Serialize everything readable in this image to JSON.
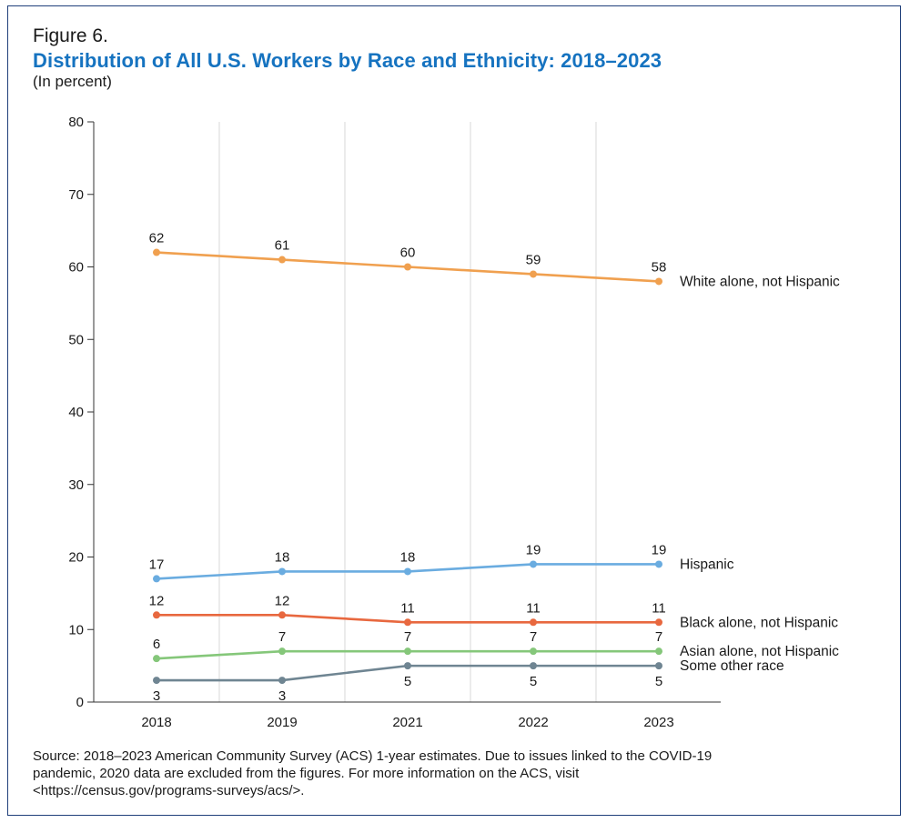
{
  "header": {
    "figure_label": "Figure 6.",
    "title": "Distribution of All U.S. Workers by Race and Ethnicity: 2018–2023",
    "subtitle": "(In percent)"
  },
  "source": {
    "lines": [
      "Source: 2018–2023 American Community Survey (ACS) 1-year estimates. Due to issues linked to the COVID-19",
      "pandemic, 2020 data are excluded from the figures. For more information on the ACS, visit",
      "<https://census.gov/programs-surveys/acs/>."
    ]
  },
  "chart_data": {
    "type": "line",
    "title": "Distribution of All U.S. Workers by Race and Ethnicity: 2018–2023",
    "xlabel": "",
    "ylabel": "In percent",
    "categories": [
      "2018",
      "2019",
      "2021",
      "2022",
      "2023"
    ],
    "ylim": [
      0,
      80
    ],
    "yticks": [
      0,
      10,
      20,
      30,
      40,
      50,
      60,
      70,
      80
    ],
    "grid": "vertical",
    "series": [
      {
        "name": "White alone, not Hispanic",
        "color": "#f0a04f",
        "values": [
          62,
          61,
          60,
          59,
          58
        ],
        "labels": [
          "62",
          "61",
          "60",
          "59",
          "58"
        ],
        "label_pos": [
          "above",
          "above",
          "above",
          "above",
          "above"
        ]
      },
      {
        "name": "Hispanic",
        "color": "#6aace0",
        "values": [
          17,
          18,
          18,
          19,
          19
        ],
        "labels": [
          "17",
          "18",
          "18",
          "19",
          "19"
        ],
        "label_pos": [
          "above",
          "above",
          "above",
          "above",
          "above"
        ]
      },
      {
        "name": "Black alone, not Hispanic",
        "color": "#e8683f",
        "values": [
          12,
          12,
          11,
          11,
          11
        ],
        "labels": [
          "12",
          "12",
          "11",
          "11",
          "11"
        ],
        "label_pos": [
          "above",
          "above",
          "above",
          "above",
          "above"
        ]
      },
      {
        "name": "Asian alone, not Hispanic",
        "color": "#85c77a",
        "values": [
          6,
          7,
          7,
          7,
          7
        ],
        "labels": [
          "6",
          "7",
          "7",
          "7",
          "7"
        ],
        "label_pos": [
          "above",
          "above",
          "above",
          "above",
          "above"
        ]
      },
      {
        "name": "Some other race",
        "color": "#6f8592",
        "values": [
          3,
          3,
          5,
          5,
          5
        ],
        "labels": [
          "3",
          "3",
          "5",
          "5",
          "5"
        ],
        "label_pos": [
          "below",
          "below",
          "below",
          "below",
          "below"
        ]
      }
    ]
  }
}
